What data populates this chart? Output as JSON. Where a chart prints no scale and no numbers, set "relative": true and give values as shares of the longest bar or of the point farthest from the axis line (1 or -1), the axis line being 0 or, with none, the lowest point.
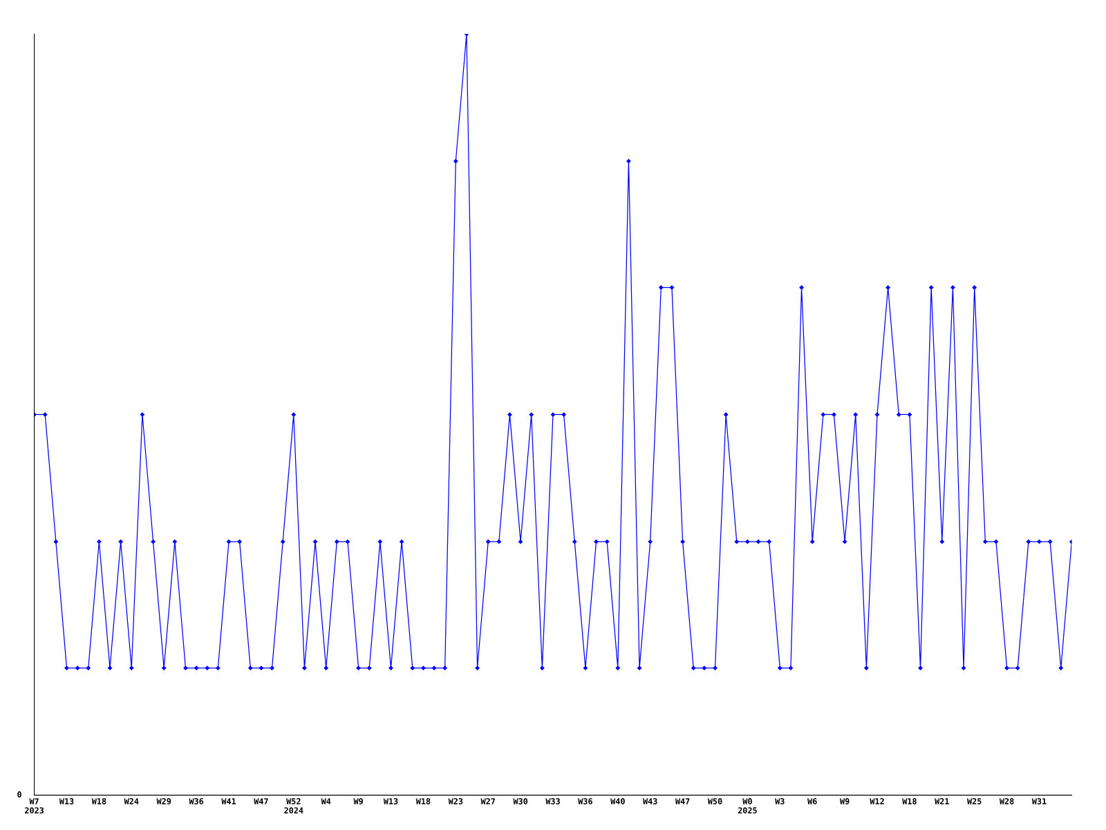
{
  "chart_data": {
    "type": "line",
    "relative": true,
    "color": "#0000ff",
    "marker": "diamond",
    "grid": false,
    "annotations": [
      "0"
    ],
    "categories": [
      "W7\n2023",
      null,
      null,
      "W13",
      null,
      null,
      "W18",
      null,
      null,
      "W24",
      null,
      null,
      "W29",
      null,
      null,
      "W36",
      null,
      null,
      "W41",
      null,
      null,
      "W47",
      null,
      null,
      "W52\n2024",
      null,
      null,
      "W4",
      null,
      null,
      "W9",
      null,
      null,
      "W13",
      null,
      null,
      "W18",
      null,
      null,
      "W23",
      null,
      null,
      "W27",
      null,
      null,
      "W30",
      null,
      null,
      "W33",
      null,
      null,
      "W36",
      null,
      null,
      "W40",
      null,
      null,
      "W43",
      null,
      null,
      "W47",
      null,
      null,
      "W50",
      null,
      null,
      "W0\n2025",
      null,
      null,
      "W3",
      null,
      null,
      "W6",
      null,
      null,
      "W9",
      null,
      null,
      "W12",
      null,
      null,
      "W18",
      null,
      null,
      "W21",
      null,
      null,
      "W25",
      null,
      null,
      "W28",
      null,
      null,
      "W31",
      null,
      null,
      null
    ],
    "values": [
      0.5,
      0.5,
      0.333,
      0.167,
      0.167,
      0.167,
      0.333,
      0.167,
      0.333,
      0.167,
      0.5,
      0.333,
      0.167,
      0.333,
      0.167,
      0.167,
      0.167,
      0.167,
      0.333,
      0.333,
      0.167,
      0.167,
      0.167,
      0.333,
      0.5,
      0.167,
      0.333,
      0.167,
      0.333,
      0.333,
      0.167,
      0.167,
      0.333,
      0.167,
      0.333,
      0.167,
      0.167,
      0.167,
      0.167,
      0.833,
      1,
      0.167,
      0.333,
      0.333,
      0.5,
      0.333,
      0.5,
      0.167,
      0.5,
      0.5,
      0.333,
      0.167,
      0.333,
      0.333,
      0.167,
      0.833,
      0.167,
      0.333,
      0.667,
      0.667,
      0.333,
      0.167,
      0.167,
      0.167,
      0.5,
      0.333,
      0.333,
      0.333,
      0.333,
      0.167,
      0.167,
      0.667,
      0.333,
      0.5,
      0.5,
      0.333,
      0.5,
      0.167,
      0.5,
      0.667,
      0.5,
      0.5,
      0.167,
      0.667,
      0.333,
      0.667,
      0.167,
      0.667,
      0.333,
      0.333,
      0.167,
      0.167,
      0.333,
      0.333,
      0.333,
      0.167,
      0.333
    ]
  }
}
